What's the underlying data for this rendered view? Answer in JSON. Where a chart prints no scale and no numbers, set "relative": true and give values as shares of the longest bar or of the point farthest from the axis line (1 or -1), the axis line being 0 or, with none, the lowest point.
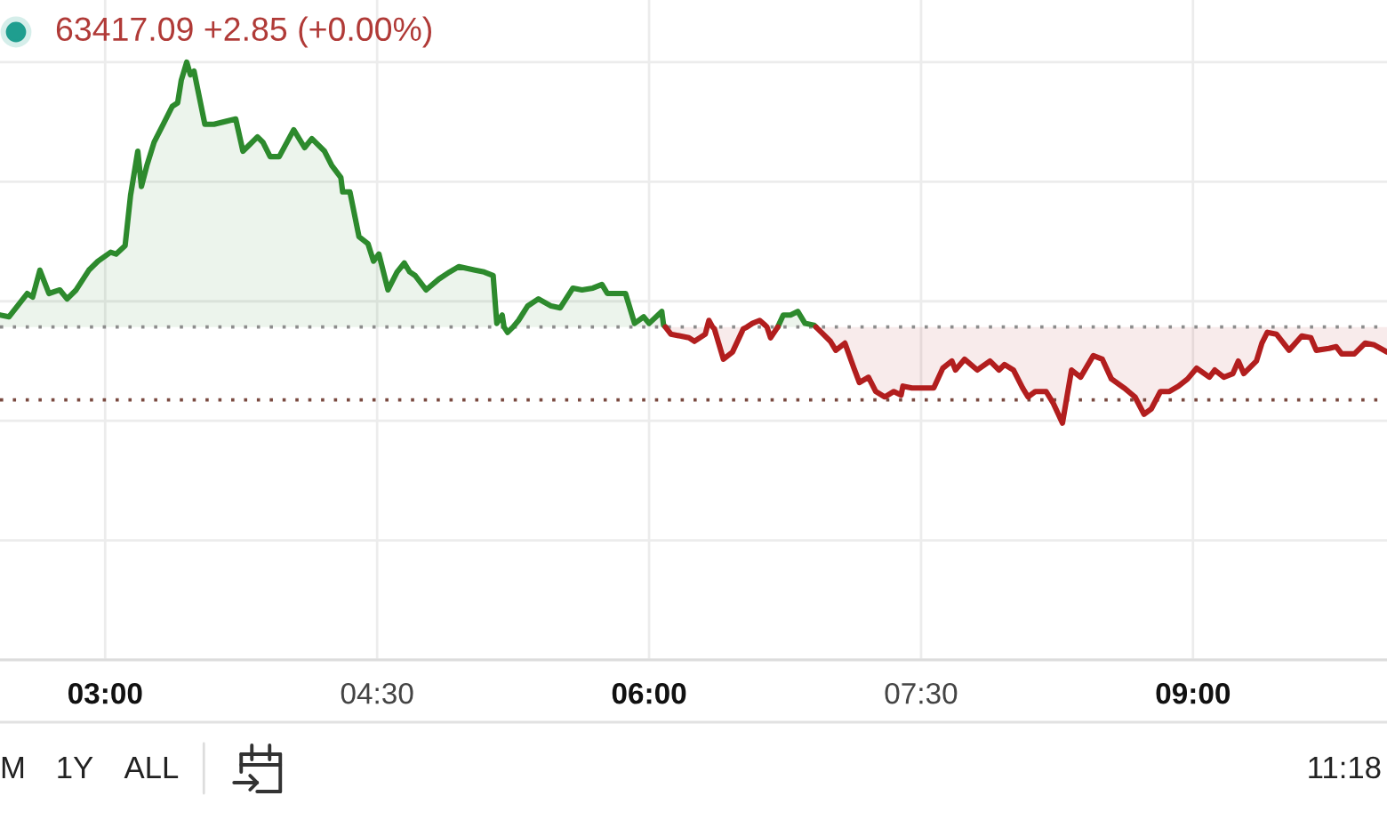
{
  "chart_data": {
    "type": "line",
    "title": "63417.09 +2.85 (+0.00%)",
    "relative": true,
    "xlim": [
      2.42,
      10.07
    ],
    "xticks": [
      {
        "value": 3,
        "label": "03:00"
      },
      {
        "value": 4.5,
        "label": "04:30"
      },
      {
        "value": 6,
        "label": "06:00"
      },
      {
        "value": 7.5,
        "label": "07:30"
      },
      {
        "value": 9,
        "label": "09:00"
      }
    ],
    "grid": true,
    "line_style": "solid",
    "ref_lines": [
      {
        "axis": "y",
        "value": 0.557,
        "color": "#8c8c8c",
        "line_style": "dotted"
      },
      {
        "axis": "y",
        "value": 0.435,
        "color": "#7a4a40",
        "line_style": "dotted"
      }
    ],
    "series": [
      {
        "color": "#2d8a2d",
        "x": [
          2.42,
          2.47,
          2.57,
          2.6,
          2.64,
          2.69,
          2.75,
          2.79,
          2.84,
          2.91,
          2.96,
          3.03,
          3.06,
          3.11,
          3.14,
          3.18,
          3.2,
          3.23,
          3.27,
          3.32,
          3.37,
          3.4,
          3.42,
          3.45,
          3.47,
          3.49,
          3.55,
          3.6,
          3.72,
          3.76,
          3.79,
          3.84,
          3.87,
          3.91,
          3.96,
          4.04,
          4.1,
          4.14,
          4.21,
          4.25,
          4.3,
          4.31,
          4.35,
          4.4,
          4.45,
          4.48,
          4.51,
          4.56,
          4.61,
          4.65,
          4.68,
          4.71,
          4.77,
          4.84,
          4.9,
          4.95,
          5.04,
          5.09,
          5.14,
          5.16,
          5.19,
          5.2,
          5.22,
          5.25,
          5.28,
          5.33,
          5.39,
          5.46,
          5.51,
          5.58,
          5.63,
          5.69,
          5.74,
          5.77,
          5.87,
          5.92,
          5.97,
          6.0,
          6.07,
          6.08,
          6.09,
          6.4,
          6.71,
          6.74,
          6.78,
          6.82,
          6.86,
          6.91,
          6.92
        ],
        "values": [
          0.577,
          0.574,
          0.613,
          0.607,
          0.652,
          0.613,
          0.619,
          0.604,
          0.619,
          0.652,
          0.667,
          0.682,
          0.679,
          0.693,
          0.777,
          0.851,
          0.792,
          0.827,
          0.866,
          0.896,
          0.926,
          0.932,
          0.97,
          1.0,
          0.979,
          0.985,
          0.896,
          0.896,
          0.905,
          0.851,
          0.86,
          0.875,
          0.866,
          0.842,
          0.842,
          0.887,
          0.857,
          0.872,
          0.851,
          0.827,
          0.807,
          0.783,
          0.783,
          0.708,
          0.696,
          0.667,
          0.679,
          0.619,
          0.649,
          0.664,
          0.649,
          0.643,
          0.619,
          0.637,
          0.649,
          0.658,
          0.652,
          0.649,
          0.643,
          0.563,
          0.577,
          0.557,
          0.548,
          0.557,
          0.568,
          0.592,
          0.604,
          0.592,
          0.589,
          0.622,
          0.619,
          0.622,
          0.628,
          0.613,
          0.613,
          0.563,
          0.574,
          0.563,
          0.583,
          0.56,
          0.557,
          null,
          0.557,
          0.577,
          0.577,
          0.583,
          0.563,
          0.56,
          0.557
        ],
        "lower": [
          0.557,
          0.557,
          0.557,
          0.557,
          0.557,
          0.557,
          0.557,
          0.557,
          0.557,
          0.557,
          0.557,
          0.557,
          0.557,
          0.557,
          0.557,
          0.557,
          0.557,
          0.557,
          0.557,
          0.557,
          0.557,
          0.557,
          0.557,
          0.557,
          0.557,
          0.557,
          0.557,
          0.557,
          0.557,
          0.557,
          0.557,
          0.557,
          0.557,
          0.557,
          0.557,
          0.557,
          0.557,
          0.557,
          0.557,
          0.557,
          0.557,
          0.557,
          0.557,
          0.557,
          0.557,
          0.557,
          0.557,
          0.557,
          0.557,
          0.557,
          0.557,
          0.557,
          0.557,
          0.557,
          0.557,
          0.557,
          0.557,
          0.557,
          0.557,
          null,
          null,
          null,
          null,
          0.557,
          0.557,
          0.557,
          0.557,
          0.557,
          0.557,
          0.557,
          0.557,
          0.557,
          0.557,
          0.557,
          0.557,
          0.557,
          0.557,
          0.557,
          0.557,
          0.557,
          0.557,
          null,
          0.557,
          0.557,
          0.557,
          0.557,
          0.557,
          0.557,
          0.557
        ],
        "upper": [
          0.577,
          0.574,
          0.613,
          0.607,
          0.652,
          0.613,
          0.619,
          0.604,
          0.619,
          0.652,
          0.667,
          0.682,
          0.679,
          0.693,
          0.777,
          0.851,
          0.792,
          0.827,
          0.866,
          0.896,
          0.926,
          0.932,
          0.97,
          1.0,
          0.979,
          0.985,
          0.896,
          0.896,
          0.905,
          0.851,
          0.86,
          0.875,
          0.866,
          0.842,
          0.842,
          0.887,
          0.857,
          0.872,
          0.851,
          0.827,
          0.807,
          0.783,
          0.783,
          0.708,
          0.696,
          0.667,
          0.679,
          0.619,
          0.649,
          0.664,
          0.649,
          0.643,
          0.619,
          0.637,
          0.649,
          0.658,
          0.652,
          0.649,
          0.643,
          null,
          null,
          null,
          null,
          0.557,
          0.568,
          0.592,
          0.604,
          0.592,
          0.589,
          0.622,
          0.619,
          0.622,
          0.628,
          0.613,
          0.613,
          0.563,
          0.574,
          0.563,
          0.583,
          0.56,
          0.557,
          null,
          0.557,
          0.577,
          0.577,
          0.583,
          0.563,
          0.56,
          0.557
        ]
      },
      {
        "color": "#b21e1e",
        "x": [
          6.09,
          6.12,
          6.22,
          6.25,
          6.31,
          6.32,
          6.33,
          6.35,
          6.36,
          6.41,
          6.46,
          6.52,
          6.54,
          6.57,
          6.61,
          6.64,
          6.65,
          6.67,
          6.71,
          6.8,
          6.92,
          6.95,
          7.0,
          7.03,
          7.08,
          7.13,
          7.16,
          7.21,
          7.25,
          7.3,
          7.35,
          7.39,
          7.4,
          7.45,
          7.57,
          7.62,
          7.67,
          7.69,
          7.74,
          7.81,
          7.88,
          7.93,
          7.96,
          8.01,
          8.06,
          8.09,
          8.13,
          8.19,
          8.23,
          8.28,
          8.33,
          8.38,
          8.45,
          8.5,
          8.55,
          8.62,
          8.68,
          8.73,
          8.77,
          8.82,
          8.87,
          8.92,
          8.97,
          9.02,
          9.09,
          9.12,
          9.17,
          9.22,
          9.25,
          9.28,
          9.35,
          9.38,
          9.41,
          9.46,
          9.53,
          9.6,
          9.65,
          9.68,
          9.75,
          9.79,
          9.82,
          9.89,
          9.95,
          10.0,
          10.07
        ],
        "values": [
          0.557,
          0.545,
          0.539,
          0.533,
          0.545,
          0.557,
          0.568,
          0.557,
          0.554,
          0.503,
          0.515,
          0.554,
          0.557,
          0.563,
          0.568,
          0.56,
          0.557,
          0.539,
          0.557,
          null,
          0.557,
          0.548,
          0.533,
          0.518,
          0.53,
          0.488,
          0.464,
          0.473,
          0.449,
          0.44,
          0.449,
          0.443,
          0.458,
          0.455,
          0.455,
          0.488,
          0.5,
          0.485,
          0.503,
          0.485,
          0.5,
          0.485,
          0.494,
          0.485,
          0.455,
          0.44,
          0.449,
          0.449,
          0.429,
          0.396,
          0.485,
          0.473,
          0.509,
          0.503,
          0.47,
          0.455,
          0.44,
          0.411,
          0.42,
          0.449,
          0.449,
          0.458,
          0.47,
          0.488,
          0.473,
          0.485,
          0.473,
          0.479,
          0.5,
          0.479,
          0.5,
          0.53,
          0.548,
          0.545,
          0.518,
          0.542,
          0.539,
          0.518,
          0.521,
          0.524,
          0.512,
          0.512,
          0.53,
          0.527,
          0.515
        ],
        "lower": [
          0.557,
          0.545,
          0.539,
          0.533,
          0.545,
          0.557,
          null,
          0.557,
          0.554,
          0.503,
          0.515,
          0.554,
          0.557,
          null,
          null,
          null,
          null,
          null,
          null,
          null,
          0.557,
          0.548,
          0.533,
          0.518,
          0.53,
          0.488,
          0.464,
          0.473,
          0.449,
          0.44,
          0.449,
          0.443,
          0.458,
          0.455,
          0.455,
          0.488,
          0.5,
          0.485,
          0.503,
          0.485,
          0.5,
          0.485,
          0.494,
          0.485,
          0.455,
          0.44,
          0.449,
          0.449,
          0.429,
          0.396,
          0.485,
          0.473,
          0.509,
          0.503,
          0.47,
          0.455,
          0.44,
          0.411,
          0.42,
          0.449,
          0.449,
          0.458,
          0.47,
          0.488,
          0.473,
          0.485,
          0.473,
          0.479,
          0.5,
          0.479,
          0.5,
          0.53,
          0.548,
          0.545,
          0.518,
          0.542,
          0.539,
          0.518,
          0.521,
          0.524,
          0.512,
          0.512,
          0.53,
          0.527,
          0.515
        ],
        "upper": [
          0.557,
          0.557,
          0.557,
          0.557,
          0.557,
          0.557,
          null,
          0.557,
          0.557,
          0.557,
          0.557,
          0.557,
          0.557,
          null,
          null,
          null,
          null,
          null,
          null,
          null,
          0.557,
          0.557,
          0.557,
          0.557,
          0.557,
          0.557,
          0.557,
          0.557,
          0.557,
          0.557,
          0.557,
          0.557,
          0.557,
          0.557,
          0.557,
          0.557,
          0.557,
          0.557,
          0.557,
          0.557,
          0.557,
          0.557,
          0.557,
          0.557,
          0.557,
          0.557,
          0.557,
          0.557,
          0.557,
          0.557,
          0.557,
          0.557,
          0.557,
          0.557,
          0.557,
          0.557,
          0.557,
          0.557,
          0.557,
          0.557,
          0.557,
          0.557,
          0.557,
          0.557,
          0.557,
          0.557,
          0.557,
          0.557,
          0.557,
          0.557,
          0.557,
          0.557,
          0.557,
          0.557,
          0.557,
          0.557,
          0.557,
          0.557,
          0.557,
          0.557,
          0.557,
          0.557,
          0.557,
          0.557,
          0.557
        ]
      }
    ],
    "annotations": [
      "M",
      "1Y",
      "ALL",
      "11:18"
    ]
  }
}
